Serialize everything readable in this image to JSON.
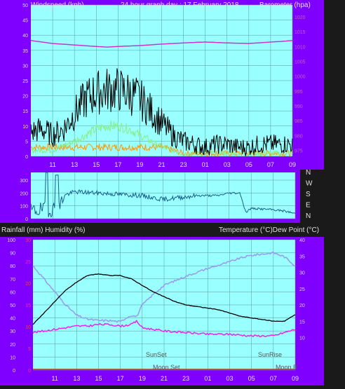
{
  "header": {
    "left": "Windspeed (kph)",
    "center": "24 hour graph day : 17 February 2018",
    "right": "Barometer (hpa)"
  },
  "middle_header": {
    "left": "Rainfall (mm)  Humidity (%)",
    "right": "Temperature (°C)Dew Point (°C)"
  },
  "annotations": {
    "sunset": "SunSet",
    "moonset": "Moon Set",
    "sunrise": "SunRise",
    "moonrise": "Moon R"
  },
  "colors": {
    "frame_bg": "#7f00ff",
    "plot_bg": "#99ffff",
    "grid": "#5a9a9a",
    "text": "#e0e0e0",
    "wind_speed": "#000000",
    "wind_avg": "#ff9900",
    "wind_light": "#88ee88",
    "barometer": "#cc33cc",
    "wind_dir": "#1b5f8a",
    "temperature": "#000000",
    "humidity": "#9999ee",
    "dewpoint": "#ee22ee",
    "rain_axis": "#ff3366",
    "rain": "#aa3300"
  },
  "chart_data": [
    {
      "type": "line",
      "title": "24 hour graph day : 17 February 2018",
      "ylabel": "Windspeed (kph)",
      "y2label": "Barometer (hpa)",
      "ylim": [
        0,
        50
      ],
      "yticks": [
        "0",
        "5",
        "10",
        "15",
        "20",
        "25",
        "30",
        "35",
        "40",
        "45",
        "50"
      ],
      "y2lim": [
        973,
        1024
      ],
      "y2ticks": [
        "975",
        "980",
        "985",
        "990",
        "995",
        "1000",
        "1005",
        "1010",
        "1015",
        "1020"
      ],
      "xticks": [
        "11",
        "13",
        "15",
        "17",
        "19",
        "21",
        "23",
        "01",
        "03",
        "05",
        "07",
        "09"
      ],
      "series": [
        {
          "key": "gust",
          "x": [
            9,
            10,
            11,
            12,
            13,
            14,
            15,
            16,
            17,
            18,
            19,
            20,
            21,
            22,
            23,
            24,
            25,
            26,
            27,
            28,
            29,
            30,
            31,
            32,
            33
          ],
          "values": [
            8,
            9,
            7,
            9,
            14,
            19,
            21,
            22,
            22,
            21,
            19,
            15,
            11,
            7,
            5,
            4,
            3,
            4,
            4,
            3,
            3,
            4,
            4,
            4,
            4
          ]
        },
        {
          "key": "light",
          "x": [
            9,
            11,
            13,
            14,
            15,
            16,
            17,
            18,
            19,
            20,
            21,
            22,
            23,
            24,
            30,
            33
          ],
          "values": [
            2,
            2,
            5,
            7,
            9,
            10,
            10,
            9,
            7,
            5,
            3,
            2,
            1,
            1,
            1,
            1
          ]
        },
        {
          "key": "average",
          "x": [
            9,
            11,
            13,
            15,
            17,
            19,
            21,
            22,
            23,
            24,
            26,
            28,
            30,
            32,
            33
          ],
          "values": [
            3,
            3,
            3,
            3,
            3,
            3,
            3,
            2,
            1,
            1,
            1,
            1,
            1,
            1,
            1
          ]
        },
        {
          "key": "barometer",
          "x": [
            9,
            11,
            13,
            15,
            16,
            17,
            19,
            21,
            23,
            25,
            27,
            29,
            31,
            32,
            33
          ],
          "values": [
            1012,
            1011,
            1010.5,
            1010,
            1009.8,
            1010,
            1010.3,
            1010.8,
            1011.2,
            1011.5,
            1011.2,
            1011,
            1011.5,
            1011.7,
            1012
          ]
        }
      ]
    },
    {
      "type": "line",
      "ylabel": "",
      "yticks": [
        "0",
        "100",
        "200",
        "300"
      ],
      "ylim": [
        0,
        360
      ],
      "side_labels": [
        "N",
        "W",
        "S",
        "E",
        "N"
      ],
      "xticks": [
        "11",
        "13",
        "15",
        "17",
        "19",
        "21",
        "23",
        "01",
        "03",
        "05",
        "07",
        "09"
      ],
      "series": [
        {
          "key": "direction",
          "x": [
            9,
            10,
            11.5,
            12,
            13,
            15,
            17,
            19,
            21,
            23,
            24,
            26,
            27,
            28,
            28.5,
            29,
            31,
            32,
            33
          ],
          "values": [
            60,
            70,
            75,
            180,
            210,
            200,
            190,
            180,
            150,
            170,
            180,
            180,
            200,
            200,
            50,
            80,
            70,
            60,
            40
          ]
        }
      ]
    },
    {
      "type": "line",
      "ylabel": "Rainfall (mm)  Humidity (%)",
      "y2label": "Temperature (°C)Dew Point (°C)",
      "ylim": [
        0,
        100
      ],
      "yticks": [
        "0",
        "10",
        "20",
        "30",
        "40",
        "50",
        "60",
        "70",
        "80",
        "90",
        "100"
      ],
      "rain_ticks": [
        "0",
        "5",
        "10",
        "15",
        "20",
        "25",
        "30"
      ],
      "y2lim": [
        0,
        40
      ],
      "y2ticks": [
        "10",
        "15",
        "20",
        "25",
        "30",
        "35",
        "40"
      ],
      "xticks": [
        "11",
        "13",
        "15",
        "17",
        "19",
        "21",
        "23",
        "01",
        "03",
        "05",
        "07",
        "09"
      ],
      "series": [
        {
          "key": "temperature",
          "x": [
            9,
            10,
            11,
            12,
            13,
            14,
            15,
            16,
            17,
            18,
            19,
            20,
            21,
            22,
            23,
            24,
            25,
            26,
            27,
            28,
            29,
            30,
            31,
            32,
            33
          ],
          "values": [
            14,
            17.5,
            21,
            24.5,
            27,
            29,
            29.5,
            29,
            29,
            28,
            26,
            24,
            22.5,
            21,
            20,
            19.5,
            19,
            18.5,
            17.5,
            16.5,
            16,
            15.5,
            15,
            15,
            17
          ]
        },
        {
          "key": "humidity",
          "x": [
            9,
            10,
            11,
            12,
            13,
            14,
            15,
            16,
            17,
            17.5,
            18,
            18.5,
            19,
            20,
            21,
            23,
            25,
            27,
            28,
            29,
            30,
            31,
            32,
            33
          ],
          "values": [
            80,
            70,
            60,
            50,
            42,
            39,
            38,
            38,
            37,
            40,
            42,
            41,
            50,
            58,
            65,
            72,
            78,
            83,
            86,
            88,
            89,
            90,
            87,
            80
          ]
        },
        {
          "key": "dewpoint",
          "x": [
            9,
            10,
            11,
            12,
            13,
            14,
            15,
            16,
            17,
            18,
            18.5,
            19,
            20,
            21,
            23,
            25,
            27,
            29,
            31,
            32,
            33
          ],
          "values": [
            11.5,
            12,
            12.5,
            13,
            13.5,
            13.5,
            14,
            14,
            13.5,
            14,
            15,
            13,
            12.5,
            12,
            11.5,
            11,
            11,
            10.5,
            10.5,
            11.5,
            12.5
          ]
        }
      ]
    }
  ]
}
